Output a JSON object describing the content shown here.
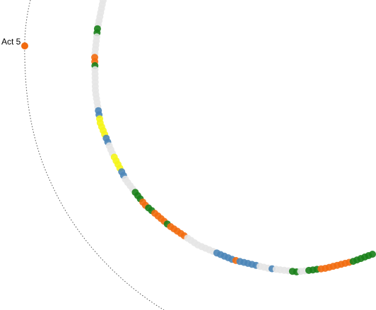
{
  "label": "Act 5"
}
